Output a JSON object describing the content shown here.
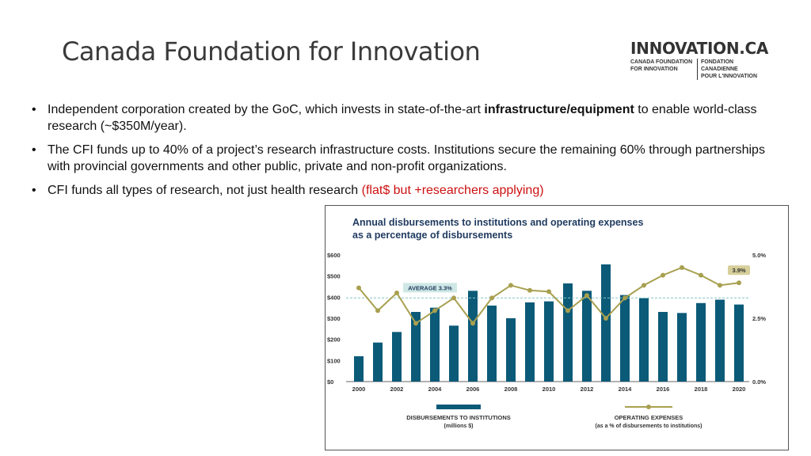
{
  "slide": {
    "title": "Canada Foundation for Innovation",
    "bullets": [
      {
        "pre": "Independent corporation created by the GoC, which invests in state-of-the-art ",
        "bold1": "infrastructure",
        "mid": "/",
        "bold2": "equipment",
        "post": " to enable world-class research (~$350M/year)."
      },
      {
        "text": "The CFI funds up to 40% of a project’s research infrastructure costs. Institutions secure the remaining 60% through partnerships with provincial governments and other public, private and non-profit organizations."
      },
      {
        "text": "CFI funds all types of research, not just health research ",
        "note": "(flat$ but +researchers applying)"
      }
    ]
  },
  "logo": {
    "name": "INNOVATION.CA",
    "en_line1": "CANADA FOUNDATION",
    "en_line2": "FOR INNOVATION",
    "fr_line1": "FONDATION CANADIENNE",
    "fr_line2": "POUR L'INNOVATION"
  },
  "colors": {
    "bar": "#0b5a78",
    "line": "#a8a050",
    "average": "#86c6c4",
    "title": "#1f3a5f"
  },
  "chart_data": {
    "type": "bar+line",
    "title": "Annual disbursements to institutions and operating expenses as a percentage of disbursements",
    "title_lines": [
      "Annual disbursements to institutions and operating expenses",
      "as a percentage of disbursements"
    ],
    "x": [
      2000,
      2001,
      2002,
      2003,
      2004,
      2005,
      2006,
      2007,
      2008,
      2009,
      2010,
      2011,
      2012,
      2013,
      2014,
      2015,
      2016,
      2017,
      2018,
      2019,
      2020
    ],
    "x_ticks": [
      "2000",
      "2002",
      "2004",
      "2006",
      "2008",
      "2010",
      "2012",
      "2014",
      "2016",
      "2018",
      "2020"
    ],
    "bars": {
      "name": "DISBURSEMENTS TO INSTITUTIONS",
      "unit": "(millions $)",
      "values": [
        120,
        185,
        235,
        330,
        350,
        265,
        430,
        360,
        300,
        375,
        380,
        465,
        430,
        555,
        410,
        395,
        330,
        325,
        372,
        388,
        365
      ]
    },
    "line": {
      "name": "OPERATING EXPENSES",
      "unit": "(as a % of disbursements to institutions)",
      "values": [
        3.7,
        2.8,
        3.5,
        2.3,
        2.8,
        3.3,
        2.3,
        3.3,
        3.8,
        3.6,
        3.55,
        2.8,
        3.4,
        2.5,
        3.3,
        3.8,
        4.2,
        4.5,
        4.2,
        3.8,
        3.9
      ]
    },
    "left_axis": {
      "min": 0,
      "max": 600,
      "ticks": [
        "$0",
        "$100",
        "$200",
        "$300",
        "$400",
        "$500",
        "$600"
      ]
    },
    "right_axis": {
      "min": 0,
      "max": 5,
      "ticks": [
        "0.0%",
        "2.5%",
        "5.0%"
      ]
    },
    "average": {
      "label": "AVERAGE 3.3%",
      "value": 3.3
    },
    "last_label": "3.9%",
    "legend_placement": "bottom",
    "grid": false
  }
}
